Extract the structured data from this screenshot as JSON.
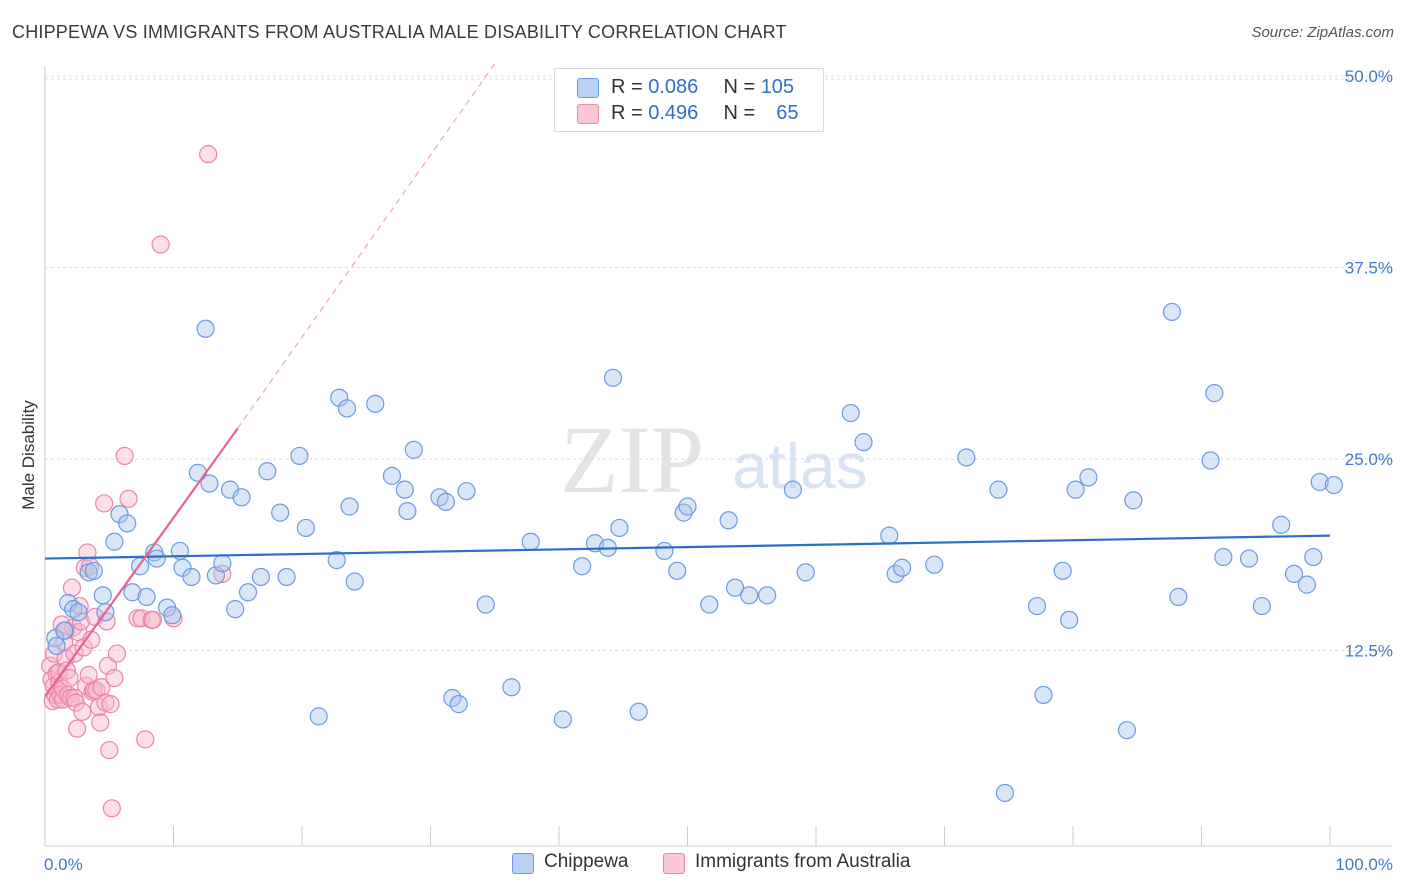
{
  "title": "CHIPPEWA VS IMMIGRANTS FROM AUSTRALIA MALE DISABILITY CORRELATION CHART",
  "source": "Source: ZipAtlas.com",
  "watermark": {
    "zip": "ZIP",
    "atlas": "atlas"
  },
  "legend": {
    "rows": [
      {
        "r_label": "R =",
        "r_value": "0.086",
        "n_label": "N =",
        "n_value": "105"
      },
      {
        "r_label": "R =",
        "r_value": "0.496",
        "n_label": "N =",
        "n_value": "65"
      }
    ]
  },
  "bottom_legend": [
    "Chippewa",
    "Immigrants from Australia"
  ],
  "colors": {
    "blue_fill": "#a9c8f0",
    "blue_stroke": "#6b9be0",
    "blue_line": "#2a6fc9",
    "pink_fill": "#f8b9cd",
    "pink_stroke": "#ec85a6",
    "pink_line": "#e8628c",
    "grid": "#dddddd",
    "tick_label": "#3f78cc"
  },
  "chart_data": {
    "type": "scatter",
    "title": "CHIPPEWA VS IMMIGRANTS FROM AUSTRALIA MALE DISABILITY CORRELATION CHART",
    "xlabel": "",
    "ylabel": "Male Disability",
    "xlim": [
      0,
      100
    ],
    "ylim": [
      0,
      52
    ],
    "x_tick_labels": [
      "0.0%",
      "100.0%"
    ],
    "y_ticks": [
      12.5,
      25.0,
      37.5,
      50.0
    ],
    "y_tick_labels": [
      "12.5%",
      "25.0%",
      "37.5%",
      "50.0%"
    ],
    "series": [
      {
        "name": "Chippewa",
        "r": 0.086,
        "n": 105,
        "trend": {
          "x0": 0,
          "y0": 18.5,
          "x1": 100,
          "y1": 20.0
        },
        "points": [
          [
            0.8,
            13.3
          ],
          [
            0.9,
            12.8
          ],
          [
            1.5,
            13.8
          ],
          [
            1.8,
            15.6
          ],
          [
            2.2,
            15.2
          ],
          [
            2.6,
            15.0
          ],
          [
            3.4,
            17.6
          ],
          [
            3.8,
            17.7
          ],
          [
            4.5,
            16.1
          ],
          [
            4.7,
            15.0
          ],
          [
            5.4,
            19.6
          ],
          [
            5.8,
            21.4
          ],
          [
            6.4,
            20.8
          ],
          [
            6.8,
            16.3
          ],
          [
            7.4,
            18.0
          ],
          [
            7.9,
            16.0
          ],
          [
            8.5,
            18.9
          ],
          [
            8.7,
            18.5
          ],
          [
            9.5,
            15.3
          ],
          [
            9.9,
            14.8
          ],
          [
            10.5,
            19.0
          ],
          [
            10.7,
            17.9
          ],
          [
            11.4,
            17.3
          ],
          [
            11.9,
            24.1
          ],
          [
            12.5,
            33.5
          ],
          [
            12.8,
            23.4
          ],
          [
            13.3,
            17.4
          ],
          [
            13.8,
            18.2
          ],
          [
            14.4,
            23.0
          ],
          [
            14.8,
            15.2
          ],
          [
            15.3,
            22.5
          ],
          [
            15.8,
            16.3
          ],
          [
            16.8,
            17.3
          ],
          [
            17.3,
            24.2
          ],
          [
            18.3,
            21.5
          ],
          [
            18.8,
            17.3
          ],
          [
            19.8,
            25.2
          ],
          [
            20.3,
            20.5
          ],
          [
            21.3,
            8.2
          ],
          [
            22.7,
            18.4
          ],
          [
            22.9,
            29.0
          ],
          [
            23.5,
            28.3
          ],
          [
            23.7,
            21.9
          ],
          [
            24.1,
            17.0
          ],
          [
            25.7,
            28.6
          ],
          [
            27.0,
            23.9
          ],
          [
            28.0,
            23.0
          ],
          [
            28.2,
            21.6
          ],
          [
            28.7,
            25.6
          ],
          [
            30.7,
            22.5
          ],
          [
            31.2,
            22.2
          ],
          [
            31.7,
            9.4
          ],
          [
            32.2,
            9.0
          ],
          [
            32.8,
            22.9
          ],
          [
            34.3,
            15.5
          ],
          [
            36.3,
            10.1
          ],
          [
            37.8,
            19.6
          ],
          [
            40.3,
            8.0
          ],
          [
            41.8,
            18.0
          ],
          [
            42.8,
            19.5
          ],
          [
            43.8,
            19.2
          ],
          [
            44.2,
            30.3
          ],
          [
            44.7,
            20.5
          ],
          [
            46.2,
            8.5
          ],
          [
            48.2,
            19.0
          ],
          [
            49.2,
            17.7
          ],
          [
            49.7,
            21.5
          ],
          [
            50.0,
            21.9
          ],
          [
            51.7,
            15.5
          ],
          [
            53.2,
            21.0
          ],
          [
            53.7,
            16.6
          ],
          [
            54.8,
            16.1
          ],
          [
            56.2,
            16.1
          ],
          [
            58.2,
            23.0
          ],
          [
            59.2,
            17.6
          ],
          [
            62.7,
            28.0
          ],
          [
            63.7,
            26.1
          ],
          [
            65.7,
            20.0
          ],
          [
            66.2,
            17.5
          ],
          [
            66.7,
            17.9
          ],
          [
            69.2,
            18.1
          ],
          [
            71.7,
            25.1
          ],
          [
            74.2,
            23.0
          ],
          [
            77.2,
            15.4
          ],
          [
            77.7,
            9.6
          ],
          [
            79.2,
            17.7
          ],
          [
            79.7,
            14.5
          ],
          [
            80.2,
            23.0
          ],
          [
            81.2,
            23.8
          ],
          [
            84.2,
            7.3
          ],
          [
            84.7,
            22.3
          ],
          [
            87.7,
            34.6
          ],
          [
            88.2,
            16.0
          ],
          [
            90.7,
            24.9
          ],
          [
            91.0,
            29.3
          ],
          [
            91.7,
            18.6
          ],
          [
            93.7,
            18.5
          ],
          [
            94.7,
            15.4
          ],
          [
            96.2,
            20.7
          ],
          [
            97.2,
            17.5
          ],
          [
            98.2,
            16.8
          ],
          [
            98.7,
            18.6
          ],
          [
            99.2,
            23.5
          ],
          [
            100.3,
            23.3
          ],
          [
            74.7,
            3.2
          ]
        ]
      },
      {
        "name": "Immigrants from Australia",
        "r": 0.496,
        "n": 65,
        "trend": {
          "x0": 0,
          "y0": 9.5,
          "x1": 15,
          "y1": 27.0
        },
        "trend_dashed_to": {
          "x": 35,
          "y": 50.8
        },
        "points": [
          [
            0.4,
            11.5
          ],
          [
            0.5,
            10.6
          ],
          [
            0.6,
            9.2
          ],
          [
            0.7,
            10.2
          ],
          [
            0.7,
            12.3
          ],
          [
            0.8,
            9.6
          ],
          [
            0.9,
            11.0
          ],
          [
            1.0,
            9.3
          ],
          [
            1.1,
            10.4
          ],
          [
            1.1,
            11.1
          ],
          [
            1.2,
            9.6
          ],
          [
            1.3,
            14.2
          ],
          [
            1.4,
            9.3
          ],
          [
            1.4,
            10.0
          ],
          [
            1.5,
            13.0
          ],
          [
            1.6,
            12.0
          ],
          [
            1.7,
            11.2
          ],
          [
            1.8,
            9.6
          ],
          [
            1.9,
            10.7
          ],
          [
            2.0,
            9.4
          ],
          [
            2.1,
            16.6
          ],
          [
            2.2,
            14.0
          ],
          [
            2.3,
            12.3
          ],
          [
            2.3,
            9.4
          ],
          [
            2.4,
            9.1
          ],
          [
            2.5,
            7.4
          ],
          [
            2.6,
            13.7
          ],
          [
            2.7,
            15.4
          ],
          [
            2.8,
            14.4
          ],
          [
            2.9,
            8.5
          ],
          [
            3.0,
            12.7
          ],
          [
            3.1,
            17.9
          ],
          [
            3.2,
            10.2
          ],
          [
            3.3,
            18.9
          ],
          [
            3.4,
            10.9
          ],
          [
            3.5,
            18.0
          ],
          [
            3.6,
            13.2
          ],
          [
            3.7,
            9.8
          ],
          [
            3.8,
            9.9
          ],
          [
            3.9,
            14.7
          ],
          [
            4.0,
            9.9
          ],
          [
            4.2,
            8.8
          ],
          [
            4.3,
            7.8
          ],
          [
            4.4,
            10.1
          ],
          [
            4.6,
            22.1
          ],
          [
            4.7,
            9.1
          ],
          [
            4.8,
            14.4
          ],
          [
            4.9,
            11.5
          ],
          [
            5.0,
            6.0
          ],
          [
            5.1,
            9.0
          ],
          [
            5.2,
            2.2
          ],
          [
            5.4,
            10.7
          ],
          [
            5.6,
            12.3
          ],
          [
            6.2,
            25.2
          ],
          [
            6.5,
            22.4
          ],
          [
            7.2,
            14.6
          ],
          [
            7.5,
            14.6
          ],
          [
            7.8,
            6.7
          ],
          [
            8.3,
            14.5
          ],
          [
            8.4,
            14.5
          ],
          [
            9.0,
            39.0
          ],
          [
            10.0,
            14.6
          ],
          [
            12.7,
            44.9
          ],
          [
            13.8,
            17.5
          ],
          [
            1.6,
            13.8
          ]
        ]
      }
    ]
  }
}
